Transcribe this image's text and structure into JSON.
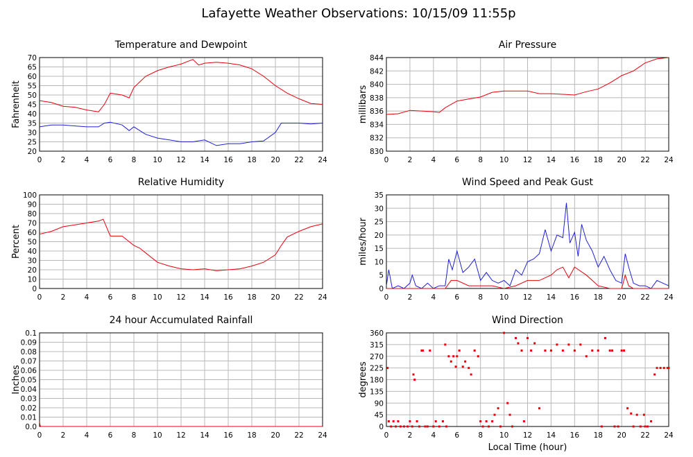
{
  "page_title": "Lafayette Weather Observations: 10/15/09 11:55p",
  "chart_data": [
    {
      "id": "temp",
      "type": "line",
      "title": "Temperature and Dewpoint",
      "xlabel": "",
      "ylabel": "Fahrenheit",
      "xlim": [
        0,
        24
      ],
      "ylim": [
        20,
        70
      ],
      "xticks": [
        0,
        2,
        4,
        6,
        8,
        10,
        12,
        14,
        16,
        18,
        20,
        22,
        24
      ],
      "yticks": [
        20,
        25,
        30,
        35,
        40,
        45,
        50,
        55,
        60,
        65,
        70
      ],
      "grid": true,
      "series": [
        {
          "color": "#e8000b",
          "x": [
            0,
            1,
            2,
            3,
            4,
            5,
            5.5,
            6,
            7,
            7.6,
            8,
            8.5,
            9,
            10,
            11,
            12,
            13,
            13.5,
            14,
            15,
            16,
            17,
            18,
            19,
            20,
            21,
            22,
            23,
            24
          ],
          "y": [
            47,
            46,
            44,
            43.5,
            42,
            41,
            45,
            51,
            50,
            48.5,
            54,
            57,
            60,
            63,
            65,
            66.5,
            69,
            66,
            67,
            67.5,
            67,
            66,
            64,
            60,
            55,
            51,
            48,
            45.5,
            45
          ]
        },
        {
          "color": "#1f1fd6",
          "x": [
            0,
            1,
            2,
            3,
            4,
            5,
            5.5,
            6,
            7,
            7.6,
            8,
            8.5,
            9,
            10,
            11,
            12,
            13,
            14,
            15,
            16,
            17,
            18,
            19,
            20,
            20.5,
            21,
            22,
            23,
            24
          ],
          "y": [
            33,
            34,
            34,
            33.5,
            33,
            33,
            35,
            35.5,
            34,
            31,
            33,
            31,
            29,
            27,
            26,
            25,
            25,
            26,
            23,
            24,
            24,
            25,
            25.5,
            30,
            35,
            35,
            35,
            34.5,
            35
          ]
        }
      ]
    },
    {
      "id": "pressure",
      "type": "line",
      "title": "Air Pressure",
      "xlabel": "",
      "ylabel": "millibars",
      "xlim": [
        0,
        24
      ],
      "ylim": [
        830,
        844
      ],
      "xticks": [
        0,
        2,
        4,
        6,
        8,
        10,
        12,
        14,
        16,
        18,
        20,
        22,
        24
      ],
      "yticks": [
        830,
        832,
        834,
        836,
        838,
        840,
        842,
        844
      ],
      "grid": true,
      "series": [
        {
          "color": "#e8000b",
          "x": [
            0,
            1,
            2,
            3,
            4,
            4.5,
            5,
            6,
            7,
            8,
            9,
            10,
            11,
            12,
            13,
            14,
            15,
            16,
            17,
            18,
            19,
            20,
            21,
            22,
            23,
            24
          ],
          "y": [
            835.5,
            835.6,
            836.1,
            836,
            835.9,
            835.8,
            836.5,
            837.5,
            837.8,
            838.1,
            838.8,
            839,
            839,
            839,
            838.6,
            838.6,
            838.5,
            838.4,
            838.9,
            839.3,
            840.2,
            841.3,
            842,
            843.2,
            843.8,
            844
          ]
        }
      ]
    },
    {
      "id": "humidity",
      "type": "line",
      "title": "Relative Humidity",
      "xlabel": "",
      "ylabel": "Percent",
      "xlim": [
        0,
        24
      ],
      "ylim": [
        0,
        100
      ],
      "xticks": [
        0,
        2,
        4,
        6,
        8,
        10,
        12,
        14,
        16,
        18,
        20,
        22,
        24
      ],
      "yticks": [
        0,
        10,
        20,
        30,
        40,
        50,
        60,
        70,
        80,
        90,
        100
      ],
      "grid": true,
      "series": [
        {
          "color": "#e8000b",
          "x": [
            0,
            1,
            2,
            3,
            4,
            5,
            5.4,
            5.8,
            6,
            7,
            7.5,
            8,
            8.5,
            9,
            10,
            11,
            12,
            13,
            14,
            15,
            16,
            17,
            18,
            19,
            20,
            20.5,
            21,
            22,
            23,
            24
          ],
          "y": [
            58,
            61,
            66,
            68,
            70,
            72,
            74,
            62,
            56,
            56,
            51,
            46,
            43,
            38,
            28,
            24,
            21,
            20,
            21,
            19,
            20,
            21,
            24,
            28,
            36,
            46,
            55,
            61,
            66,
            69
          ]
        }
      ]
    },
    {
      "id": "wind",
      "type": "line",
      "title": "Wind Speed and Peak Gust",
      "xlabel": "",
      "ylabel": "miles/hour",
      "xlim": [
        0,
        24
      ],
      "ylim": [
        0,
        35
      ],
      "xticks": [
        0,
        2,
        4,
        6,
        8,
        10,
        12,
        14,
        16,
        18,
        20,
        22,
        24
      ],
      "yticks": [
        0,
        5,
        10,
        15,
        20,
        25,
        30,
        35
      ],
      "grid": true,
      "series": [
        {
          "color": "#1f1fd6",
          "x": [
            0,
            0.2,
            0.5,
            1,
            1.5,
            2,
            2.2,
            2.5,
            3,
            3.5,
            4,
            4.5,
            5,
            5.3,
            5.6,
            6,
            6.5,
            7,
            7.5,
            8,
            8.5,
            9,
            9.5,
            10,
            10.5,
            11,
            11.5,
            12,
            12.5,
            13,
            13.5,
            14,
            14.5,
            15,
            15.3,
            15.6,
            16,
            16.3,
            16.6,
            17,
            17.5,
            18,
            18.5,
            19,
            19.5,
            20,
            20.3,
            20.6,
            21,
            21.5,
            22,
            22.5,
            23,
            23.5,
            24
          ],
          "y": [
            1,
            7,
            0,
            1,
            0,
            2,
            5,
            1,
            0,
            2,
            0,
            1,
            1,
            11,
            7,
            14,
            6,
            8,
            11,
            3,
            6,
            3,
            2,
            3,
            1,
            7,
            5,
            10,
            11,
            13,
            22,
            14,
            20,
            19,
            32,
            17,
            21,
            12,
            24,
            18,
            14,
            8,
            12,
            7,
            3,
            2,
            13,
            8,
            2,
            1,
            1,
            0,
            3,
            2,
            1
          ]
        },
        {
          "color": "#e8000b",
          "x": [
            0,
            1,
            2,
            3,
            4,
            5,
            5.5,
            6,
            7,
            8,
            9,
            10,
            11,
            12,
            13,
            14,
            14.5,
            15,
            15.5,
            16,
            17,
            18,
            19,
            20,
            20.3,
            20.6,
            21,
            22,
            23,
            24
          ],
          "y": [
            0,
            0,
            0,
            0,
            0,
            0,
            3,
            3,
            1,
            1,
            1,
            0,
            1,
            3,
            3,
            5,
            7,
            8,
            4,
            8,
            5,
            1,
            0,
            0,
            5,
            1,
            0,
            0,
            0,
            0
          ]
        }
      ]
    },
    {
      "id": "rain",
      "type": "line",
      "title": "24 hour Accumulated Rainfall",
      "xlabel": "",
      "ylabel": "Inches",
      "xlim": [
        0,
        24
      ],
      "ylim": [
        0,
        0.1
      ],
      "xticks": [
        0,
        2,
        4,
        6,
        8,
        10,
        12,
        14,
        16,
        18,
        20,
        22,
        24
      ],
      "yticks": [
        "0.0",
        "0.01",
        "0.02",
        "0.03",
        "0.04",
        "0.05",
        "0.06",
        "0.07",
        "0.08",
        "0.09",
        "0.1"
      ],
      "grid": true,
      "series": [
        {
          "color": "#e8000b",
          "x": [
            0,
            0.05,
            0.1,
            24
          ],
          "y": [
            0.005,
            0.001,
            0,
            0
          ]
        }
      ]
    },
    {
      "id": "direction",
      "type": "scatter",
      "title": "Wind Direction",
      "xlabel": "Local Time (hour)",
      "ylabel": "degrees",
      "xlim": [
        0,
        24
      ],
      "ylim": [
        0,
        360
      ],
      "xticks": [
        0,
        2,
        4,
        6,
        8,
        10,
        12,
        14,
        16,
        18,
        20,
        22,
        24
      ],
      "yticks": [
        0,
        45,
        90,
        135,
        180,
        225,
        270,
        315,
        360
      ],
      "grid": true,
      "series": [
        {
          "color": "#e8000b",
          "x": [
            0.1,
            0.2,
            0.4,
            0.6,
            0.8,
            1,
            1.2,
            1.5,
            1.8,
            2,
            2.2,
            2.3,
            2.4,
            2.6,
            2.8,
            3,
            3.1,
            3.3,
            3.5,
            3.7,
            4,
            4.2,
            4.5,
            4.8,
            5,
            5.1,
            5.3,
            5.5,
            5.7,
            5.9,
            6,
            6.2,
            6.5,
            6.7,
            7,
            7.2,
            7.5,
            7.8,
            8,
            8.2,
            8.5,
            8.7,
            9,
            9.2,
            9.5,
            9.7,
            10,
            10.3,
            10.5,
            10.7,
            11,
            11.2,
            11.5,
            11.7,
            12,
            12.3,
            12.6,
            13,
            13.5,
            14,
            14.5,
            15,
            15.5,
            16,
            16.5,
            17,
            17.5,
            18,
            18.3,
            18.6,
            19,
            19.2,
            19.4,
            19.7,
            20,
            20.2,
            20.5,
            20.8,
            21,
            21.3,
            21.6,
            21.9,
            22,
            22.2,
            22.5,
            22.8,
            23,
            23.3,
            23.6,
            23.9,
            24
          ],
          "y": [
            225,
            20,
            0,
            20,
            0,
            20,
            0,
            0,
            0,
            20,
            0,
            200,
            180,
            20,
            0,
            292,
            292,
            0,
            0,
            292,
            0,
            20,
            0,
            20,
            315,
            0,
            270,
            250,
            270,
            230,
            270,
            292,
            230,
            250,
            225,
            200,
            292,
            270,
            20,
            0,
            20,
            0,
            20,
            45,
            70,
            0,
            360,
            90,
            45,
            0,
            340,
            320,
            292,
            20,
            340,
            292,
            320,
            70,
            292,
            292,
            315,
            292,
            315,
            292,
            315,
            270,
            292,
            292,
            0,
            340,
            292,
            292,
            0,
            0,
            292,
            292,
            70,
            50,
            0,
            45,
            0,
            45,
            0,
            0,
            20,
            200,
            225,
            225,
            225,
            225,
            225
          ]
        }
      ]
    }
  ]
}
